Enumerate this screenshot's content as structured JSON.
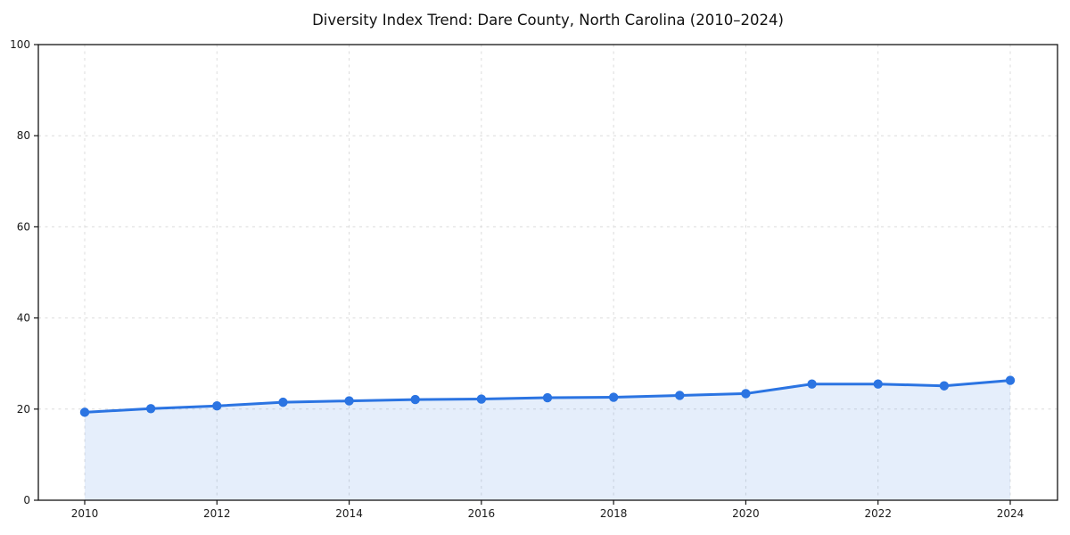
{
  "page": {
    "background": "#ffffff"
  },
  "chart_data": {
    "type": "line",
    "title": "Diversity Index Trend: Dare County, North Carolina (2010–2024)",
    "x": [
      2010,
      2011,
      2012,
      2013,
      2014,
      2015,
      2016,
      2017,
      2018,
      2019,
      2020,
      2021,
      2022,
      2023,
      2024
    ],
    "series": [
      {
        "name": "Diversity Index",
        "values": [
          19.3,
          20.1,
          20.7,
          21.5,
          21.8,
          22.1,
          22.2,
          22.5,
          22.6,
          23.0,
          23.4,
          25.5,
          25.5,
          25.1,
          26.3
        ]
      }
    ],
    "xlabel": "",
    "ylabel": "",
    "ylim": [
      0,
      100
    ],
    "yticks": [
      0,
      20,
      40,
      60,
      80,
      100
    ],
    "xticks": [
      2010,
      2012,
      2014,
      2016,
      2018,
      2020,
      2022,
      2024
    ],
    "grid": {
      "show": true,
      "style": "dashed",
      "axes": "both"
    },
    "legend_position": "none",
    "area_fill": true,
    "markers": true,
    "colors": {
      "line": "#2b74e2",
      "fill": "#2b74e2",
      "fill_opacity": 0.12,
      "grid": "#dcdcdc",
      "spine": "#141414",
      "tick_label": "#1a1a1a",
      "title": "#111111",
      "background": "#ffffff"
    }
  }
}
